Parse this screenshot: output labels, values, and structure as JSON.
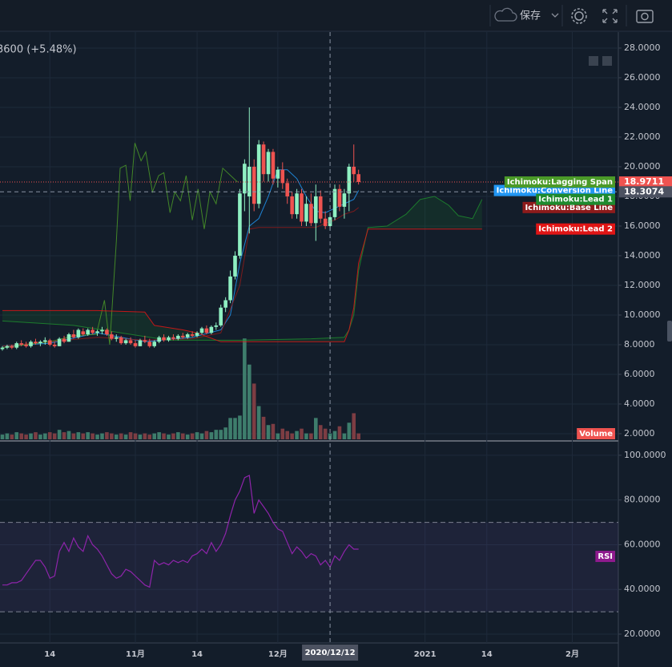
{
  "toolbar": {
    "save": "保存"
  },
  "chart_data": [
    {
      "type": "candlestick",
      "header": "3600 (+5.48%)",
      "x": [
        -10,
        -9,
        -8,
        -7,
        -6,
        -5,
        -4,
        -3,
        -2,
        -1,
        0,
        1,
        2,
        3,
        4,
        5,
        6,
        7,
        8,
        9,
        10,
        11,
        12,
        13,
        14,
        15,
        16,
        17,
        18,
        19,
        20,
        21,
        22,
        23,
        24,
        25,
        26,
        27,
        28,
        29,
        30,
        31,
        32,
        33,
        34,
        35,
        36,
        37,
        38,
        39,
        40,
        41,
        42,
        43,
        44,
        45,
        46,
        47,
        48,
        49,
        50,
        51,
        52,
        53,
        54,
        55,
        56,
        57,
        58,
        59,
        60,
        61,
        62,
        63,
        64,
        65
      ],
      "ohlc": [
        [
          7.7,
          7.9,
          7.6,
          7.8
        ],
        [
          7.8,
          8.0,
          7.7,
          7.9
        ],
        [
          7.9,
          8.0,
          7.7,
          7.8
        ],
        [
          7.8,
          8.2,
          7.7,
          8.1
        ],
        [
          8.1,
          8.3,
          7.9,
          8.0
        ],
        [
          8.0,
          8.2,
          7.8,
          7.9
        ],
        [
          7.9,
          8.3,
          7.8,
          8.2
        ],
        [
          8.2,
          8.4,
          8.0,
          8.1
        ],
        [
          8.1,
          8.3,
          7.9,
          8.2
        ],
        [
          8.2,
          8.5,
          8.0,
          8.3
        ],
        [
          8.3,
          8.4,
          7.9,
          8.0
        ],
        [
          8.0,
          8.2,
          7.8,
          7.9
        ],
        [
          7.9,
          8.5,
          7.9,
          8.4
        ],
        [
          8.4,
          8.6,
          8.1,
          8.2
        ],
        [
          8.2,
          8.8,
          8.2,
          8.7
        ],
        [
          8.7,
          9.0,
          8.4,
          8.5
        ],
        [
          8.5,
          9.1,
          8.4,
          9.0
        ],
        [
          8.9,
          9.1,
          8.6,
          8.7
        ],
        [
          8.7,
          9.1,
          8.6,
          9.0
        ],
        [
          9.0,
          9.2,
          8.7,
          8.8
        ],
        [
          8.8,
          9.0,
          8.6,
          8.9
        ],
        [
          8.9,
          9.2,
          8.7,
          9.0
        ],
        [
          9.0,
          9.1,
          8.6,
          8.7
        ],
        [
          8.7,
          8.9,
          8.3,
          8.4
        ],
        [
          8.4,
          8.7,
          8.2,
          8.5
        ],
        [
          8.5,
          8.6,
          8.0,
          8.1
        ],
        [
          8.1,
          8.4,
          8.0,
          8.3
        ],
        [
          8.3,
          8.5,
          8.0,
          8.1
        ],
        [
          8.1,
          8.3,
          7.8,
          7.9
        ],
        [
          7.9,
          8.4,
          7.9,
          8.3
        ],
        [
          8.3,
          8.6,
          8.1,
          8.2
        ],
        [
          8.2,
          8.4,
          7.8,
          7.9
        ],
        [
          7.9,
          8.3,
          7.8,
          8.2
        ],
        [
          8.2,
          8.6,
          8.1,
          8.5
        ],
        [
          8.5,
          8.7,
          8.2,
          8.3
        ],
        [
          8.3,
          8.6,
          8.2,
          8.5
        ],
        [
          8.5,
          8.7,
          8.3,
          8.4
        ],
        [
          8.4,
          8.7,
          8.3,
          8.6
        ],
        [
          8.6,
          8.8,
          8.4,
          8.5
        ],
        [
          8.5,
          8.8,
          8.4,
          8.7
        ],
        [
          8.7,
          8.9,
          8.5,
          8.6
        ],
        [
          8.6,
          8.9,
          8.5,
          8.8
        ],
        [
          8.8,
          9.2,
          8.7,
          9.1
        ],
        [
          9.1,
          9.3,
          8.7,
          8.8
        ],
        [
          8.8,
          9.3,
          8.7,
          9.2
        ],
        [
          9.2,
          9.5,
          9.0,
          9.3
        ],
        [
          9.3,
          10.7,
          9.2,
          10.5
        ],
        [
          10.5,
          11.2,
          10.2,
          11.0
        ],
        [
          11.0,
          13.0,
          10.8,
          12.6
        ],
        [
          12.6,
          14.3,
          12.4,
          14.0
        ],
        [
          14.0,
          18.5,
          13.8,
          18.2
        ],
        [
          18.2,
          20.5,
          17.0,
          20.2
        ],
        [
          18.0,
          24.0,
          15.5,
          20.0
        ],
        [
          20.0,
          20.5,
          17.0,
          17.5
        ],
        [
          17.5,
          21.8,
          17.2,
          21.5
        ],
        [
          21.5,
          21.7,
          19.0,
          19.5
        ],
        [
          19.5,
          21.2,
          19.0,
          21.0
        ],
        [
          21.0,
          21.2,
          18.8,
          19.2
        ],
        [
          19.2,
          20.0,
          18.6,
          19.8
        ],
        [
          19.8,
          20.3,
          18.5,
          18.9
        ],
        [
          18.9,
          19.2,
          17.5,
          18.0
        ],
        [
          18.0,
          18.3,
          16.5,
          16.8
        ],
        [
          16.8,
          18.5,
          16.5,
          18.2
        ],
        [
          18.2,
          18.5,
          16.0,
          16.3
        ],
        [
          16.3,
          18.0,
          16.0,
          17.5
        ],
        [
          17.5,
          18.2,
          16.0,
          16.2
        ],
        [
          16.2,
          18.8,
          15.0,
          18.0
        ],
        [
          18.0,
          18.4,
          16.2,
          16.5
        ],
        [
          16.5,
          17.0,
          15.8,
          16.0
        ],
        [
          16.0,
          16.8,
          15.7,
          16.6
        ],
        [
          16.6,
          18.8,
          16.4,
          18.5
        ],
        [
          18.5,
          18.8,
          17.0,
          17.3
        ],
        [
          17.3,
          18.5,
          16.5,
          18.2
        ],
        [
          18.2,
          20.2,
          17.0,
          20.0
        ],
        [
          20.0,
          21.5,
          19.0,
          19.5
        ],
        [
          19.5,
          19.8,
          18.8,
          18.9711
        ]
      ],
      "up_color": "#8ff0c2",
      "down_color": "#ef5350",
      "volume": {
        "name": "Volume",
        "vlim": [
          0,
          100
        ],
        "up_color": "#3e7d6c",
        "down_color": "#7d3d43",
        "label_color": "#ef5350",
        "values": [
          4,
          5,
          4,
          6,
          5,
          4,
          5,
          6,
          4,
          5,
          6,
          5,
          8,
          6,
          7,
          5,
          6,
          5,
          6,
          5,
          4,
          5,
          6,
          5,
          4,
          5,
          4,
          6,
          5,
          4,
          5,
          4,
          5,
          6,
          5,
          4,
          5,
          6,
          5,
          4,
          5,
          6,
          5,
          7,
          6,
          8,
          8,
          10,
          18,
          18,
          20,
          85,
          63,
          47,
          28,
          19,
          12,
          13,
          5,
          9,
          7,
          5,
          7,
          9,
          5,
          5,
          18,
          12,
          9,
          5,
          7,
          11,
          5,
          14,
          22,
          5
        ]
      },
      "ichimoku": [
        {
          "name": "Ichimoku:Conversion Line",
          "color": "#2196f3",
          "x": [
            -10,
            0,
            10,
            20,
            30,
            36,
            38,
            40,
            42,
            44,
            46,
            48,
            50,
            52,
            54,
            56,
            58,
            60,
            62,
            64,
            65
          ],
          "values": [
            7.9,
            8.1,
            8.8,
            8.2,
            8.5,
            9.0,
            10.0,
            13.5,
            16.0,
            16.5,
            18.0,
            19.8,
            19.8,
            19.2,
            18.0,
            17.0,
            16.9,
            17.2,
            17.5,
            17.8,
            18.4
          ]
        },
        {
          "name": "Ichimoku:Base Line",
          "color": "#8e1b1b",
          "x": [
            -10,
            10,
            20,
            30,
            36,
            40,
            42,
            44,
            56,
            58,
            60,
            62,
            64,
            65
          ],
          "values": [
            7.9,
            8.5,
            8.3,
            8.4,
            8.8,
            12.0,
            15.8,
            15.9,
            15.9,
            16.2,
            16.4,
            16.8,
            17.0,
            17.25
          ]
        },
        {
          "name": "Ichimoku:Lagging Span",
          "color": "#4b9a28",
          "x": [
            -10,
            -5,
            0,
            5,
            9.8,
            11.5,
            12.6,
            14,
            14.8,
            16,
            16.9,
            17.9,
            19.2,
            20.2,
            21.6,
            22.9,
            24,
            25.3,
            26.3,
            27.5,
            28.7,
            30,
            31.2,
            32.5,
            33.7,
            35,
            36.4,
            39.5
          ],
          "values": [
            7.8,
            8.0,
            8.2,
            8.6,
            8.7,
            11.0,
            8.0,
            15.0,
            19.9,
            20.1,
            17.7,
            21.6,
            20.4,
            21.0,
            18.3,
            19.4,
            19.6,
            16.9,
            18.3,
            17.7,
            19.4,
            16.4,
            18.5,
            15.8,
            18.3,
            17.5,
            19.9,
            18.97
          ]
        },
        {
          "name": "Ichimoku:Lead 1",
          "color": "#1e8a2e",
          "x": [
            -10,
            5,
            15,
            25,
            40,
            55,
            62,
            63,
            64,
            65,
            67,
            71,
            75,
            78,
            81,
            84,
            86,
            89,
            91
          ],
          "values": [
            9.6,
            9.3,
            8.8,
            8.3,
            8.3,
            8.4,
            8.5,
            9.0,
            10.0,
            13.0,
            15.9,
            16.0,
            16.8,
            17.8,
            18.0,
            17.4,
            16.7,
            16.5,
            17.8
          ]
        },
        {
          "name": "Ichimoku:Lead 2",
          "color": "#e01515",
          "x": [
            -10,
            10,
            20,
            22,
            28,
            31,
            36,
            62,
            63,
            64,
            65,
            67,
            91
          ],
          "values": [
            10.3,
            10.3,
            10.2,
            9.3,
            9.0,
            8.8,
            8.2,
            8.2,
            9.0,
            10.5,
            13.5,
            15.8,
            15.8
          ]
        }
      ],
      "last_price": 18.9711,
      "crosshair": {
        "x": {
          "value": 59,
          "label": "2020/12/12"
        },
        "y": 18.3074
      },
      "xlim": [
        -10.5,
        119.7
      ],
      "xticks": [
        {
          "value": 0,
          "label": "14"
        },
        {
          "value": 18,
          "label": "11月"
        },
        {
          "value": 31,
          "label": "14"
        },
        {
          "value": 48,
          "label": "12月"
        },
        {
          "value": 79,
          "label": "2021"
        },
        {
          "value": 92,
          "label": "14"
        },
        {
          "value": 110,
          "label": "2月"
        }
      ],
      "ylim": [
        1.62,
        29.08
      ],
      "yticks": [
        {
          "value": 2,
          "label": "2.0000"
        },
        {
          "value": 4,
          "label": "4.0000"
        },
        {
          "value": 6,
          "label": "6.0000"
        },
        {
          "value": 8,
          "label": "8.0000"
        },
        {
          "value": 10,
          "label": "10.0000"
        },
        {
          "value": 12,
          "label": "12.0000"
        },
        {
          "value": 14,
          "label": "14.0000"
        },
        {
          "value": 16,
          "label": "16.0000"
        },
        {
          "value": 18,
          "label": "18.0000"
        },
        {
          "value": 20,
          "label": "20.0000"
        },
        {
          "value": 22,
          "label": "22.0000"
        },
        {
          "value": 24,
          "label": "24.0000"
        },
        {
          "value": 26,
          "label": "26.0000"
        },
        {
          "value": 28,
          "label": "28.0000"
        }
      ],
      "grid": true
    },
    {
      "type": "line",
      "name": "RSI",
      "color": "#8e24aa",
      "label_color": "#8e1a8e",
      "x": [
        -10,
        -9,
        -8,
        -7,
        -6,
        -5,
        -4,
        -3,
        -2,
        -1,
        0,
        1,
        2,
        3,
        4,
        5,
        6,
        7,
        8,
        9,
        10,
        11,
        12,
        13,
        14,
        15,
        16,
        17,
        18,
        19,
        20,
        21,
        22,
        23,
        24,
        25,
        26,
        27,
        28,
        29,
        30,
        31,
        32,
        33,
        34,
        35,
        36,
        37,
        38,
        39,
        40,
        41,
        42,
        43,
        44,
        45,
        46,
        47,
        48,
        49,
        50,
        51,
        52,
        53,
        54,
        55,
        56,
        57,
        58,
        59,
        60,
        61,
        62,
        63,
        64,
        65
      ],
      "values": [
        42,
        42,
        43,
        43,
        44,
        47,
        50,
        53,
        53,
        50,
        45,
        46,
        57,
        61,
        57,
        63,
        59,
        57,
        64,
        60,
        58,
        55,
        51,
        47,
        45,
        46,
        49,
        48,
        46,
        44,
        42,
        41,
        53,
        51,
        52,
        51,
        53,
        52,
        53,
        52,
        55,
        56,
        58,
        56,
        61,
        57,
        60,
        65,
        73,
        80,
        84,
        90,
        91,
        74,
        80,
        77,
        74,
        70,
        67,
        66,
        61,
        56,
        59,
        57,
        54,
        56,
        55,
        51,
        53,
        50,
        55,
        53,
        57,
        60,
        58,
        58
      ],
      "bands": [
        70,
        30
      ],
      "band_fill": "#7e57c2",
      "ylim": [
        16.06,
        105.7
      ],
      "yticks": [
        {
          "value": 20,
          "label": "20.0000"
        },
        {
          "value": 40,
          "label": "40.0000"
        },
        {
          "value": 60,
          "label": "60.0000"
        },
        {
          "value": 80,
          "label": "80.0000"
        },
        {
          "value": 100,
          "label": "100.0000"
        }
      ]
    }
  ]
}
